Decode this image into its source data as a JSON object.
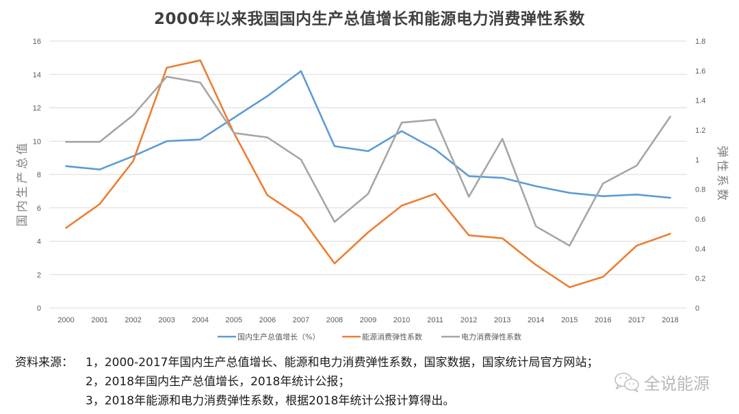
{
  "title": "2000年以来我国国内生产总值增长和能源电力消费弹性系数",
  "chart_data": {
    "type": "line",
    "title": "2000年以来我国国内生产总值增长和能源电力消费弹性系数",
    "x": [
      "2000",
      "2001",
      "2002",
      "2003",
      "2004",
      "2005",
      "2006",
      "2007",
      "2008",
      "2009",
      "2010",
      "2011",
      "2012",
      "2013",
      "2014",
      "2015",
      "2016",
      "2017",
      "2018"
    ],
    "ylabel": "国内生产总值",
    "ylabel_right": "弹性系数",
    "ylim": [
      0,
      16
    ],
    "ylim_right": [
      0,
      1.8
    ],
    "yticks": [
      "0",
      "2",
      "4",
      "6",
      "8",
      "10",
      "12",
      "14",
      "16"
    ],
    "yticks_right": [
      "0",
      "0.2",
      "0.4",
      "0.6",
      "0.8",
      "1",
      "1.2",
      "1.4",
      "1.6",
      "1.8"
    ],
    "grid": true,
    "legend_position": "bottom",
    "series": [
      {
        "name": "国内生产总值增长（%）",
        "axis": "left",
        "color": "#5b9bd5",
        "values": [
          8.5,
          8.3,
          9.1,
          10.0,
          10.1,
          11.4,
          12.7,
          14.2,
          9.7,
          9.4,
          10.6,
          9.5,
          7.9,
          7.8,
          7.3,
          6.9,
          6.7,
          6.8,
          6.6
        ]
      },
      {
        "name": "能源消费弹性系数",
        "axis": "right",
        "color": "#ed7d31",
        "values": [
          0.54,
          0.7,
          0.99,
          1.62,
          1.67,
          1.18,
          0.76,
          0.61,
          0.3,
          0.51,
          0.69,
          0.77,
          0.49,
          0.47,
          0.29,
          0.14,
          0.21,
          0.42,
          0.5
        ]
      },
      {
        "name": "电力消费弹性系数",
        "axis": "right",
        "color": "#a5a5a5",
        "values": [
          1.12,
          1.12,
          1.3,
          1.56,
          1.52,
          1.18,
          1.15,
          1.0,
          0.58,
          0.77,
          1.25,
          1.27,
          0.75,
          1.14,
          0.55,
          0.42,
          0.84,
          0.96,
          1.29
        ]
      }
    ]
  },
  "footnotes": {
    "label": "资料来源：",
    "items": [
      "1，2000-2017年国内生产总值增长、能源和电力消费弹性系数，国家数据，国家统计局官方网站；",
      "2，2018年国内生产总值增长，2018年统计公报；",
      "3，2018年能源和电力消费弹性系数，根据2018年统计公报计算得出。"
    ]
  },
  "watermark": {
    "icon": "wechat-icon",
    "text": "全说能源"
  }
}
